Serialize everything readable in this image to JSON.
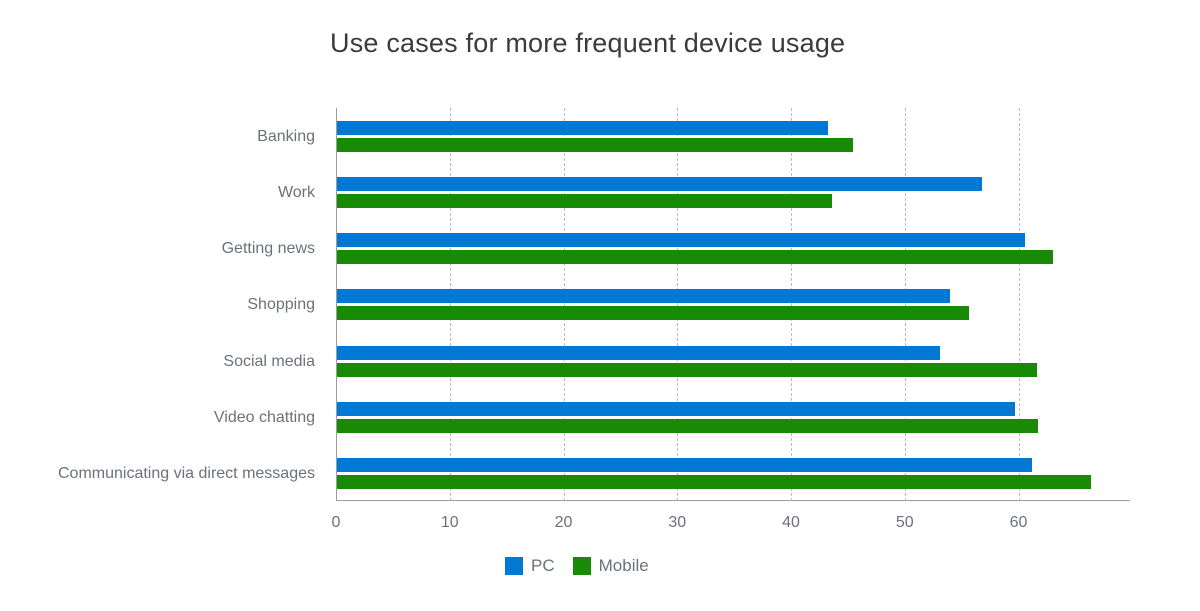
{
  "title": "Use cases for more frequent device usage",
  "legend": [
    {
      "name": "PC",
      "color": "#0078d4"
    },
    {
      "name": "Mobile",
      "color": "#188a05"
    }
  ],
  "x_ticks": [
    "0",
    "10",
    "20",
    "30",
    "40",
    "50",
    "60"
  ],
  "categories": [
    "Banking",
    "Work",
    "Getting news",
    "Shopping",
    "Social media",
    "Video chatting",
    "Communicating via direct messages"
  ],
  "chart_data": {
    "type": "bar",
    "orientation": "horizontal",
    "title": "Use cases for more frequent device usage",
    "xlabel": "",
    "ylabel": "",
    "xlim": [
      0,
      69.8
    ],
    "grid": "vertical dashed",
    "legend_position": "bottom",
    "categories": [
      "Banking",
      "Work",
      "Getting news",
      "Shopping",
      "Social media",
      "Video chatting",
      "Communicating via direct messages"
    ],
    "series": [
      {
        "name": "PC",
        "color": "#0078d4",
        "values": [
          43.2,
          56.7,
          60.5,
          53.9,
          53.0,
          59.6,
          61.1
        ]
      },
      {
        "name": "Mobile",
        "color": "#188a05",
        "values": [
          45.4,
          43.5,
          62.9,
          55.6,
          61.5,
          61.6,
          66.3
        ]
      }
    ],
    "x_ticks": [
      0,
      10,
      20,
      30,
      40,
      50,
      60
    ]
  }
}
